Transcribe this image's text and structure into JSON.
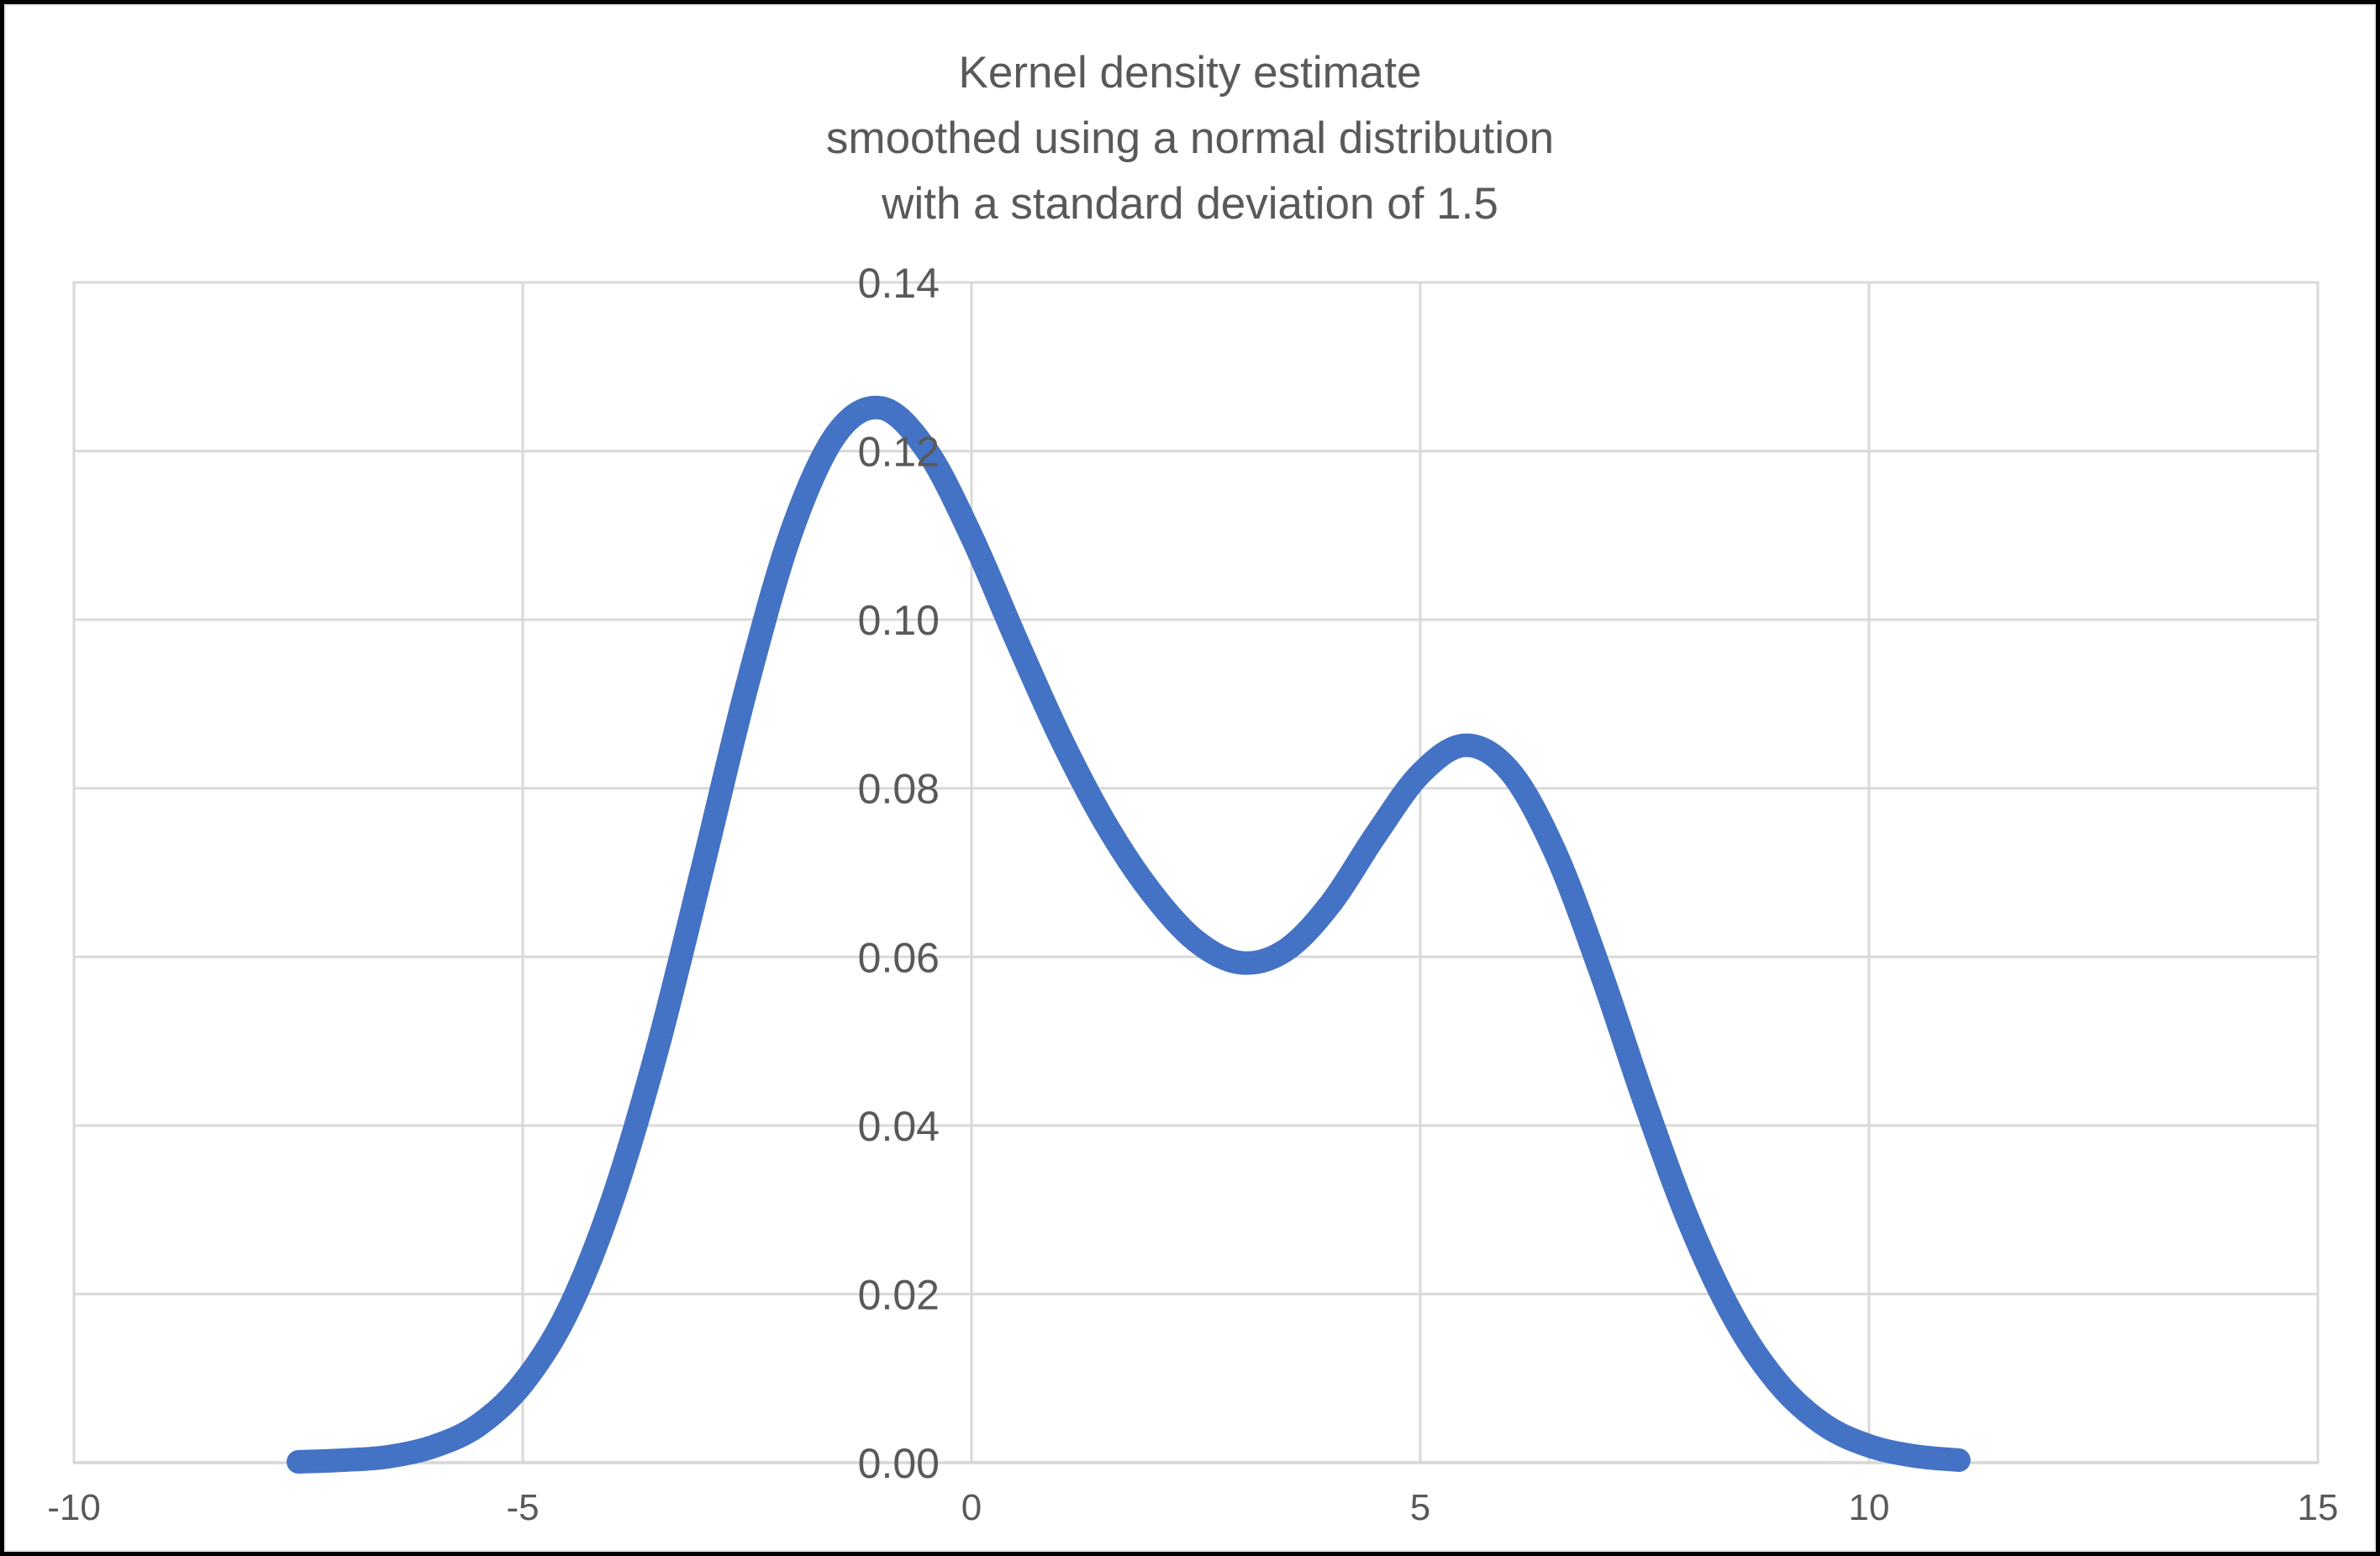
{
  "chart_data": {
    "type": "line",
    "title_lines": [
      "Kernel density estimate",
      "smoothed using a normal distribution",
      "with a standard deviation of 1.5"
    ],
    "series": [
      {
        "name": "Kernel density estimate",
        "color": "#4472C4",
        "stroke_width": 28,
        "x_start": -7.5,
        "x_step": 0.5,
        "values": [
          0.0001,
          0.0003,
          0.0007,
          0.0019,
          0.0044,
          0.0094,
          0.0179,
          0.0312,
          0.0491,
          0.0704,
          0.0922,
          0.1106,
          0.1221,
          0.1251,
          0.1201,
          0.1099,
          0.0976,
          0.0858,
          0.0757,
          0.0677,
          0.0619,
          0.0593,
          0.0608,
          0.0663,
          0.0744,
          0.0817,
          0.0851,
          0.082,
          0.0725,
          0.0585,
          0.0428,
          0.0284,
          0.0171,
          0.0093,
          0.0045,
          0.002,
          0.0008,
          0.0003
        ]
      }
    ],
    "x_ticks": [
      "-10",
      "-5",
      "0",
      "5",
      "10",
      "15"
    ],
    "x_tick_values": [
      -10,
      -5,
      0,
      5,
      10,
      15
    ],
    "y_ticks": [
      "0.00",
      "0.02",
      "0.04",
      "0.06",
      "0.08",
      "0.10",
      "0.12",
      "0.14"
    ],
    "y_tick_values": [
      0,
      0.02,
      0.04,
      0.06,
      0.08,
      0.1,
      0.12,
      0.14
    ],
    "xlim": [
      -10,
      15
    ],
    "ylim": [
      0,
      0.14
    ],
    "grid": true,
    "legend": "none",
    "notable_points": {
      "left_peak": {
        "x": -1,
        "y": 0.125
      },
      "valley": {
        "x": 3,
        "y": 0.059
      },
      "right_peak": {
        "x": 5.5,
        "y": 0.085
      }
    },
    "colors": {
      "line": "#4472C4",
      "gridline": "#D9D9D9",
      "axis_line": "#BFBFBF",
      "text": "#595959",
      "background": "#FFFFFF",
      "frame_border": "#000000"
    }
  }
}
